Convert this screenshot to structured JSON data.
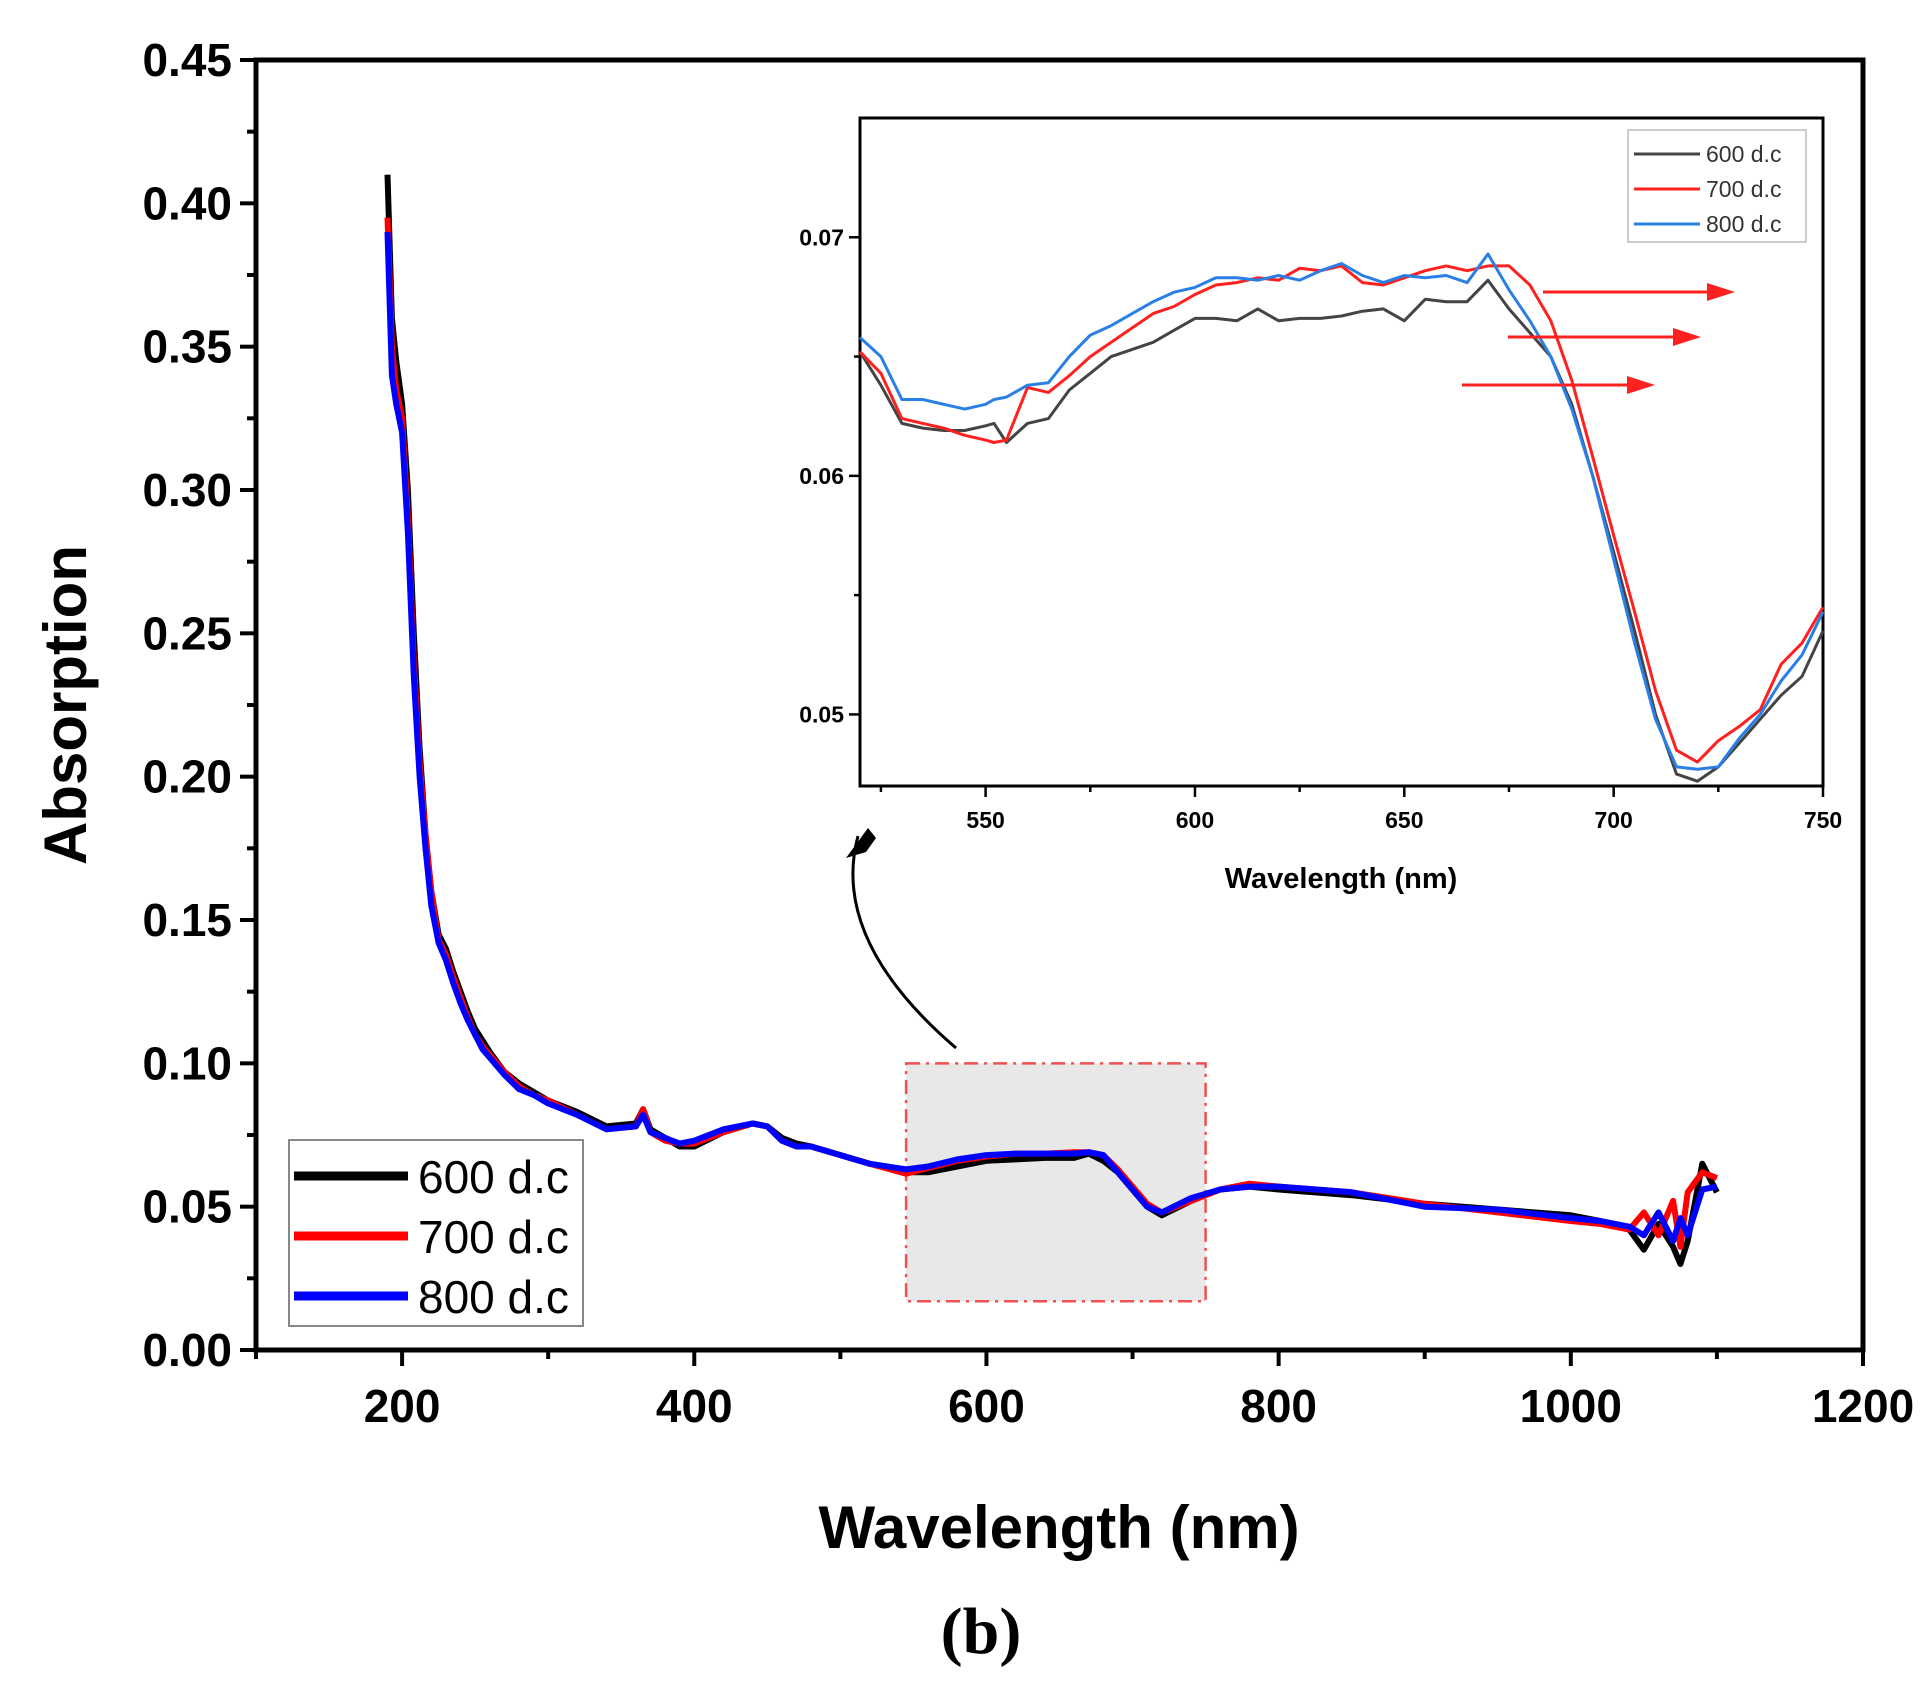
{
  "panel_label": "(b)",
  "chart_data": [
    {
      "type": "line",
      "xlabel": "Wavelength (nm)",
      "ylabel": "Absorption",
      "xlim": [
        100,
        1200
      ],
      "ylim": [
        0.0,
        0.45
      ],
      "x_ticks": [
        "200",
        "400",
        "600",
        "800",
        "1000",
        "1200"
      ],
      "y_ticks": [
        "0.00",
        "0.05",
        "0.10",
        "0.15",
        "0.20",
        "0.25",
        "0.30",
        "0.35",
        "0.40",
        "0.45"
      ],
      "legend_position": "bottom-left",
      "highlight_region": {
        "x": [
          545,
          750
        ],
        "y": [
          0.017,
          0.1
        ]
      },
      "series": [
        {
          "name": "600 d.c",
          "color": "#000000",
          "x": [
            190,
            193,
            196,
            200,
            204,
            208,
            212,
            216,
            220,
            225,
            230,
            235,
            240,
            245,
            250,
            255,
            260,
            270,
            280,
            290,
            300,
            320,
            340,
            360,
            365,
            370,
            380,
            390,
            400,
            420,
            440,
            450,
            460,
            470,
            480,
            500,
            520,
            545,
            560,
            580,
            600,
            620,
            640,
            660,
            670,
            680,
            690,
            700,
            710,
            720,
            740,
            760,
            780,
            800,
            850,
            900,
            950,
            1000,
            1020,
            1040,
            1050,
            1060,
            1070,
            1075,
            1080,
            1090,
            1100
          ],
          "y": [
            0.41,
            0.36,
            0.345,
            0.33,
            0.3,
            0.25,
            0.21,
            0.18,
            0.16,
            0.145,
            0.14,
            0.132,
            0.125,
            0.118,
            0.112,
            0.108,
            0.104,
            0.097,
            0.093,
            0.09,
            0.087,
            0.083,
            0.078,
            0.079,
            0.084,
            0.077,
            0.074,
            0.071,
            0.071,
            0.076,
            0.079,
            0.078,
            0.074,
            0.072,
            0.071,
            0.068,
            0.065,
            0.062,
            0.062,
            0.064,
            0.066,
            0.0665,
            0.067,
            0.067,
            0.0685,
            0.066,
            0.062,
            0.056,
            0.05,
            0.047,
            0.052,
            0.056,
            0.057,
            0.056,
            0.054,
            0.051,
            0.049,
            0.047,
            0.045,
            0.042,
            0.035,
            0.044,
            0.036,
            0.03,
            0.038,
            0.065,
            0.055
          ]
        },
        {
          "name": "700 d.c",
          "color": "#ff0000",
          "x": [
            190,
            193,
            196,
            200,
            204,
            208,
            212,
            216,
            220,
            225,
            230,
            235,
            240,
            245,
            250,
            255,
            260,
            270,
            280,
            290,
            300,
            320,
            340,
            360,
            365,
            370,
            380,
            390,
            400,
            420,
            440,
            450,
            460,
            470,
            480,
            500,
            520,
            545,
            560,
            580,
            600,
            620,
            640,
            660,
            670,
            680,
            690,
            700,
            710,
            720,
            740,
            760,
            780,
            800,
            850,
            900,
            950,
            1000,
            1020,
            1040,
            1050,
            1060,
            1070,
            1075,
            1080,
            1090,
            1100
          ],
          "y": [
            0.395,
            0.35,
            0.335,
            0.325,
            0.29,
            0.24,
            0.205,
            0.18,
            0.16,
            0.143,
            0.138,
            0.13,
            0.123,
            0.116,
            0.11,
            0.106,
            0.103,
            0.097,
            0.092,
            0.089,
            0.087,
            0.082,
            0.077,
            0.078,
            0.084,
            0.076,
            0.073,
            0.072,
            0.072,
            0.076,
            0.079,
            0.078,
            0.073,
            0.071,
            0.071,
            0.068,
            0.065,
            0.0615,
            0.0635,
            0.066,
            0.0675,
            0.0685,
            0.0685,
            0.069,
            0.069,
            0.068,
            0.063,
            0.057,
            0.051,
            0.048,
            0.052,
            0.056,
            0.058,
            0.057,
            0.055,
            0.051,
            0.048,
            0.045,
            0.044,
            0.042,
            0.048,
            0.04,
            0.052,
            0.036,
            0.055,
            0.062,
            0.06
          ]
        },
        {
          "name": "800 d.c",
          "color": "#0000ff",
          "x": [
            190,
            193,
            196,
            200,
            204,
            208,
            212,
            216,
            220,
            225,
            230,
            235,
            240,
            245,
            250,
            255,
            260,
            270,
            280,
            290,
            300,
            320,
            340,
            360,
            365,
            370,
            380,
            390,
            400,
            420,
            440,
            450,
            460,
            470,
            480,
            500,
            520,
            545,
            560,
            580,
            600,
            620,
            640,
            660,
            670,
            680,
            690,
            700,
            710,
            720,
            740,
            760,
            780,
            800,
            850,
            900,
            950,
            1000,
            1020,
            1040,
            1050,
            1060,
            1070,
            1075,
            1080,
            1090,
            1100
          ],
          "y": [
            0.39,
            0.34,
            0.33,
            0.32,
            0.285,
            0.235,
            0.2,
            0.175,
            0.155,
            0.142,
            0.136,
            0.128,
            0.121,
            0.115,
            0.11,
            0.105,
            0.102,
            0.096,
            0.091,
            0.089,
            0.086,
            0.082,
            0.077,
            0.078,
            0.082,
            0.076,
            0.074,
            0.072,
            0.073,
            0.077,
            0.079,
            0.078,
            0.073,
            0.071,
            0.071,
            0.068,
            0.065,
            0.063,
            0.064,
            0.0665,
            0.068,
            0.0685,
            0.0685,
            0.0685,
            0.069,
            0.068,
            0.062,
            0.056,
            0.05,
            0.048,
            0.053,
            0.056,
            0.057,
            0.057,
            0.055,
            0.05,
            0.049,
            0.046,
            0.045,
            0.043,
            0.04,
            0.048,
            0.038,
            0.046,
            0.04,
            0.056,
            0.057
          ]
        }
      ]
    },
    {
      "type": "line",
      "xlabel": "Wavelength (nm)",
      "ylabel": "",
      "xlim": [
        520,
        750
      ],
      "ylim": [
        0.047,
        0.075
      ],
      "x_ticks": [
        "550",
        "600",
        "650",
        "700",
        "750"
      ],
      "y_ticks": [
        "0.05",
        "0.06",
        "0.07"
      ],
      "legend_position": "top-right",
      "series": [
        {
          "name": "600 d.c",
          "color": "#444444",
          "x": [
            520,
            525,
            530,
            535,
            540,
            545,
            550,
            552,
            555,
            560,
            565,
            570,
            575,
            580,
            585,
            590,
            595,
            600,
            605,
            610,
            615,
            620,
            625,
            630,
            635,
            640,
            645,
            650,
            655,
            660,
            665,
            670,
            675,
            680,
            685,
            690,
            695,
            700,
            705,
            710,
            715,
            720,
            725,
            730,
            735,
            740,
            745,
            750
          ],
          "y": [
            0.0652,
            0.0638,
            0.0622,
            0.062,
            0.0619,
            0.0619,
            0.0621,
            0.0622,
            0.0614,
            0.0622,
            0.0624,
            0.0636,
            0.0643,
            0.065,
            0.0653,
            0.0656,
            0.0661,
            0.0666,
            0.0666,
            0.0665,
            0.067,
            0.0665,
            0.0666,
            0.0666,
            0.0667,
            0.0669,
            0.067,
            0.0665,
            0.0674,
            0.0673,
            0.0673,
            0.0682,
            0.067,
            0.066,
            0.065,
            0.063,
            0.06,
            0.0568,
            0.0535,
            0.05,
            0.0475,
            0.0472,
            0.0478,
            0.0488,
            0.0498,
            0.0508,
            0.0516,
            0.0535
          ]
        },
        {
          "name": "700 d.c",
          "color": "#ff2020",
          "x": [
            520,
            525,
            530,
            535,
            540,
            545,
            550,
            552,
            555,
            560,
            565,
            570,
            575,
            580,
            585,
            590,
            595,
            600,
            605,
            610,
            615,
            620,
            625,
            630,
            635,
            640,
            645,
            650,
            655,
            660,
            665,
            670,
            675,
            680,
            685,
            690,
            695,
            700,
            705,
            710,
            715,
            720,
            725,
            730,
            735,
            740,
            745,
            750
          ],
          "y": [
            0.0652,
            0.0643,
            0.0624,
            0.0622,
            0.062,
            0.0617,
            0.0615,
            0.0614,
            0.0615,
            0.0637,
            0.0635,
            0.0642,
            0.065,
            0.0656,
            0.0662,
            0.0668,
            0.0671,
            0.0676,
            0.068,
            0.0681,
            0.0683,
            0.0682,
            0.0687,
            0.0686,
            0.0688,
            0.0681,
            0.068,
            0.0683,
            0.0686,
            0.0688,
            0.0686,
            0.0688,
            0.0688,
            0.068,
            0.0665,
            0.064,
            0.0608,
            0.0575,
            0.0543,
            0.051,
            0.0485,
            0.048,
            0.0489,
            0.0495,
            0.0502,
            0.0521,
            0.053,
            0.0545
          ]
        },
        {
          "name": "800 d.c",
          "color": "#2a7fe6",
          "x": [
            520,
            525,
            530,
            535,
            540,
            545,
            550,
            552,
            555,
            560,
            565,
            570,
            575,
            580,
            585,
            590,
            595,
            600,
            605,
            610,
            615,
            620,
            625,
            630,
            635,
            640,
            645,
            650,
            655,
            660,
            665,
            670,
            675,
            680,
            685,
            690,
            695,
            700,
            705,
            710,
            715,
            720,
            725,
            730,
            735,
            740,
            745,
            750
          ],
          "y": [
            0.0658,
            0.065,
            0.0632,
            0.0632,
            0.063,
            0.0628,
            0.063,
            0.0632,
            0.0633,
            0.0638,
            0.0639,
            0.065,
            0.0659,
            0.0663,
            0.0668,
            0.0673,
            0.0677,
            0.0679,
            0.0683,
            0.0683,
            0.0682,
            0.0684,
            0.0682,
            0.0686,
            0.0689,
            0.0684,
            0.0681,
            0.0684,
            0.0683,
            0.0684,
            0.0681,
            0.0693,
            0.0678,
            0.0665,
            0.065,
            0.0628,
            0.06,
            0.0565,
            0.053,
            0.0498,
            0.0478,
            0.0477,
            0.0478,
            0.049,
            0.05,
            0.0514,
            0.0525,
            0.0543
          ]
        }
      ]
    }
  ]
}
